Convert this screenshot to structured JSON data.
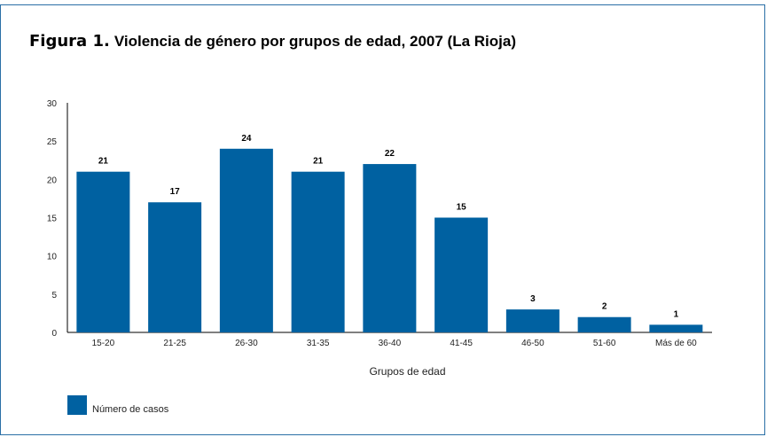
{
  "title": {
    "prefix": "Figura 1.",
    "text": "Violencia de género por grupos de edad, 2007 (La Rioja)"
  },
  "colors": {
    "bar": "#0061a1",
    "frame": "#2a6fa6",
    "axis": "#000000"
  },
  "chart_data": {
    "type": "bar",
    "categories": [
      "15-20",
      "21-25",
      "26-30",
      "31-35",
      "36-40",
      "41-45",
      "46-50",
      "51-60",
      "Más de 60"
    ],
    "series": [
      {
        "name": "Número de casos",
        "values": [
          21,
          17,
          24,
          21,
          22,
          15,
          3,
          2,
          1
        ]
      }
    ],
    "xlabel": "Grupos de edad",
    "ylabel": "",
    "ylim": [
      0,
      30
    ],
    "yticks": [
      0,
      5,
      10,
      15,
      20,
      25,
      30
    ],
    "data_labels": true,
    "grid": false,
    "legend": "bottom-left"
  }
}
